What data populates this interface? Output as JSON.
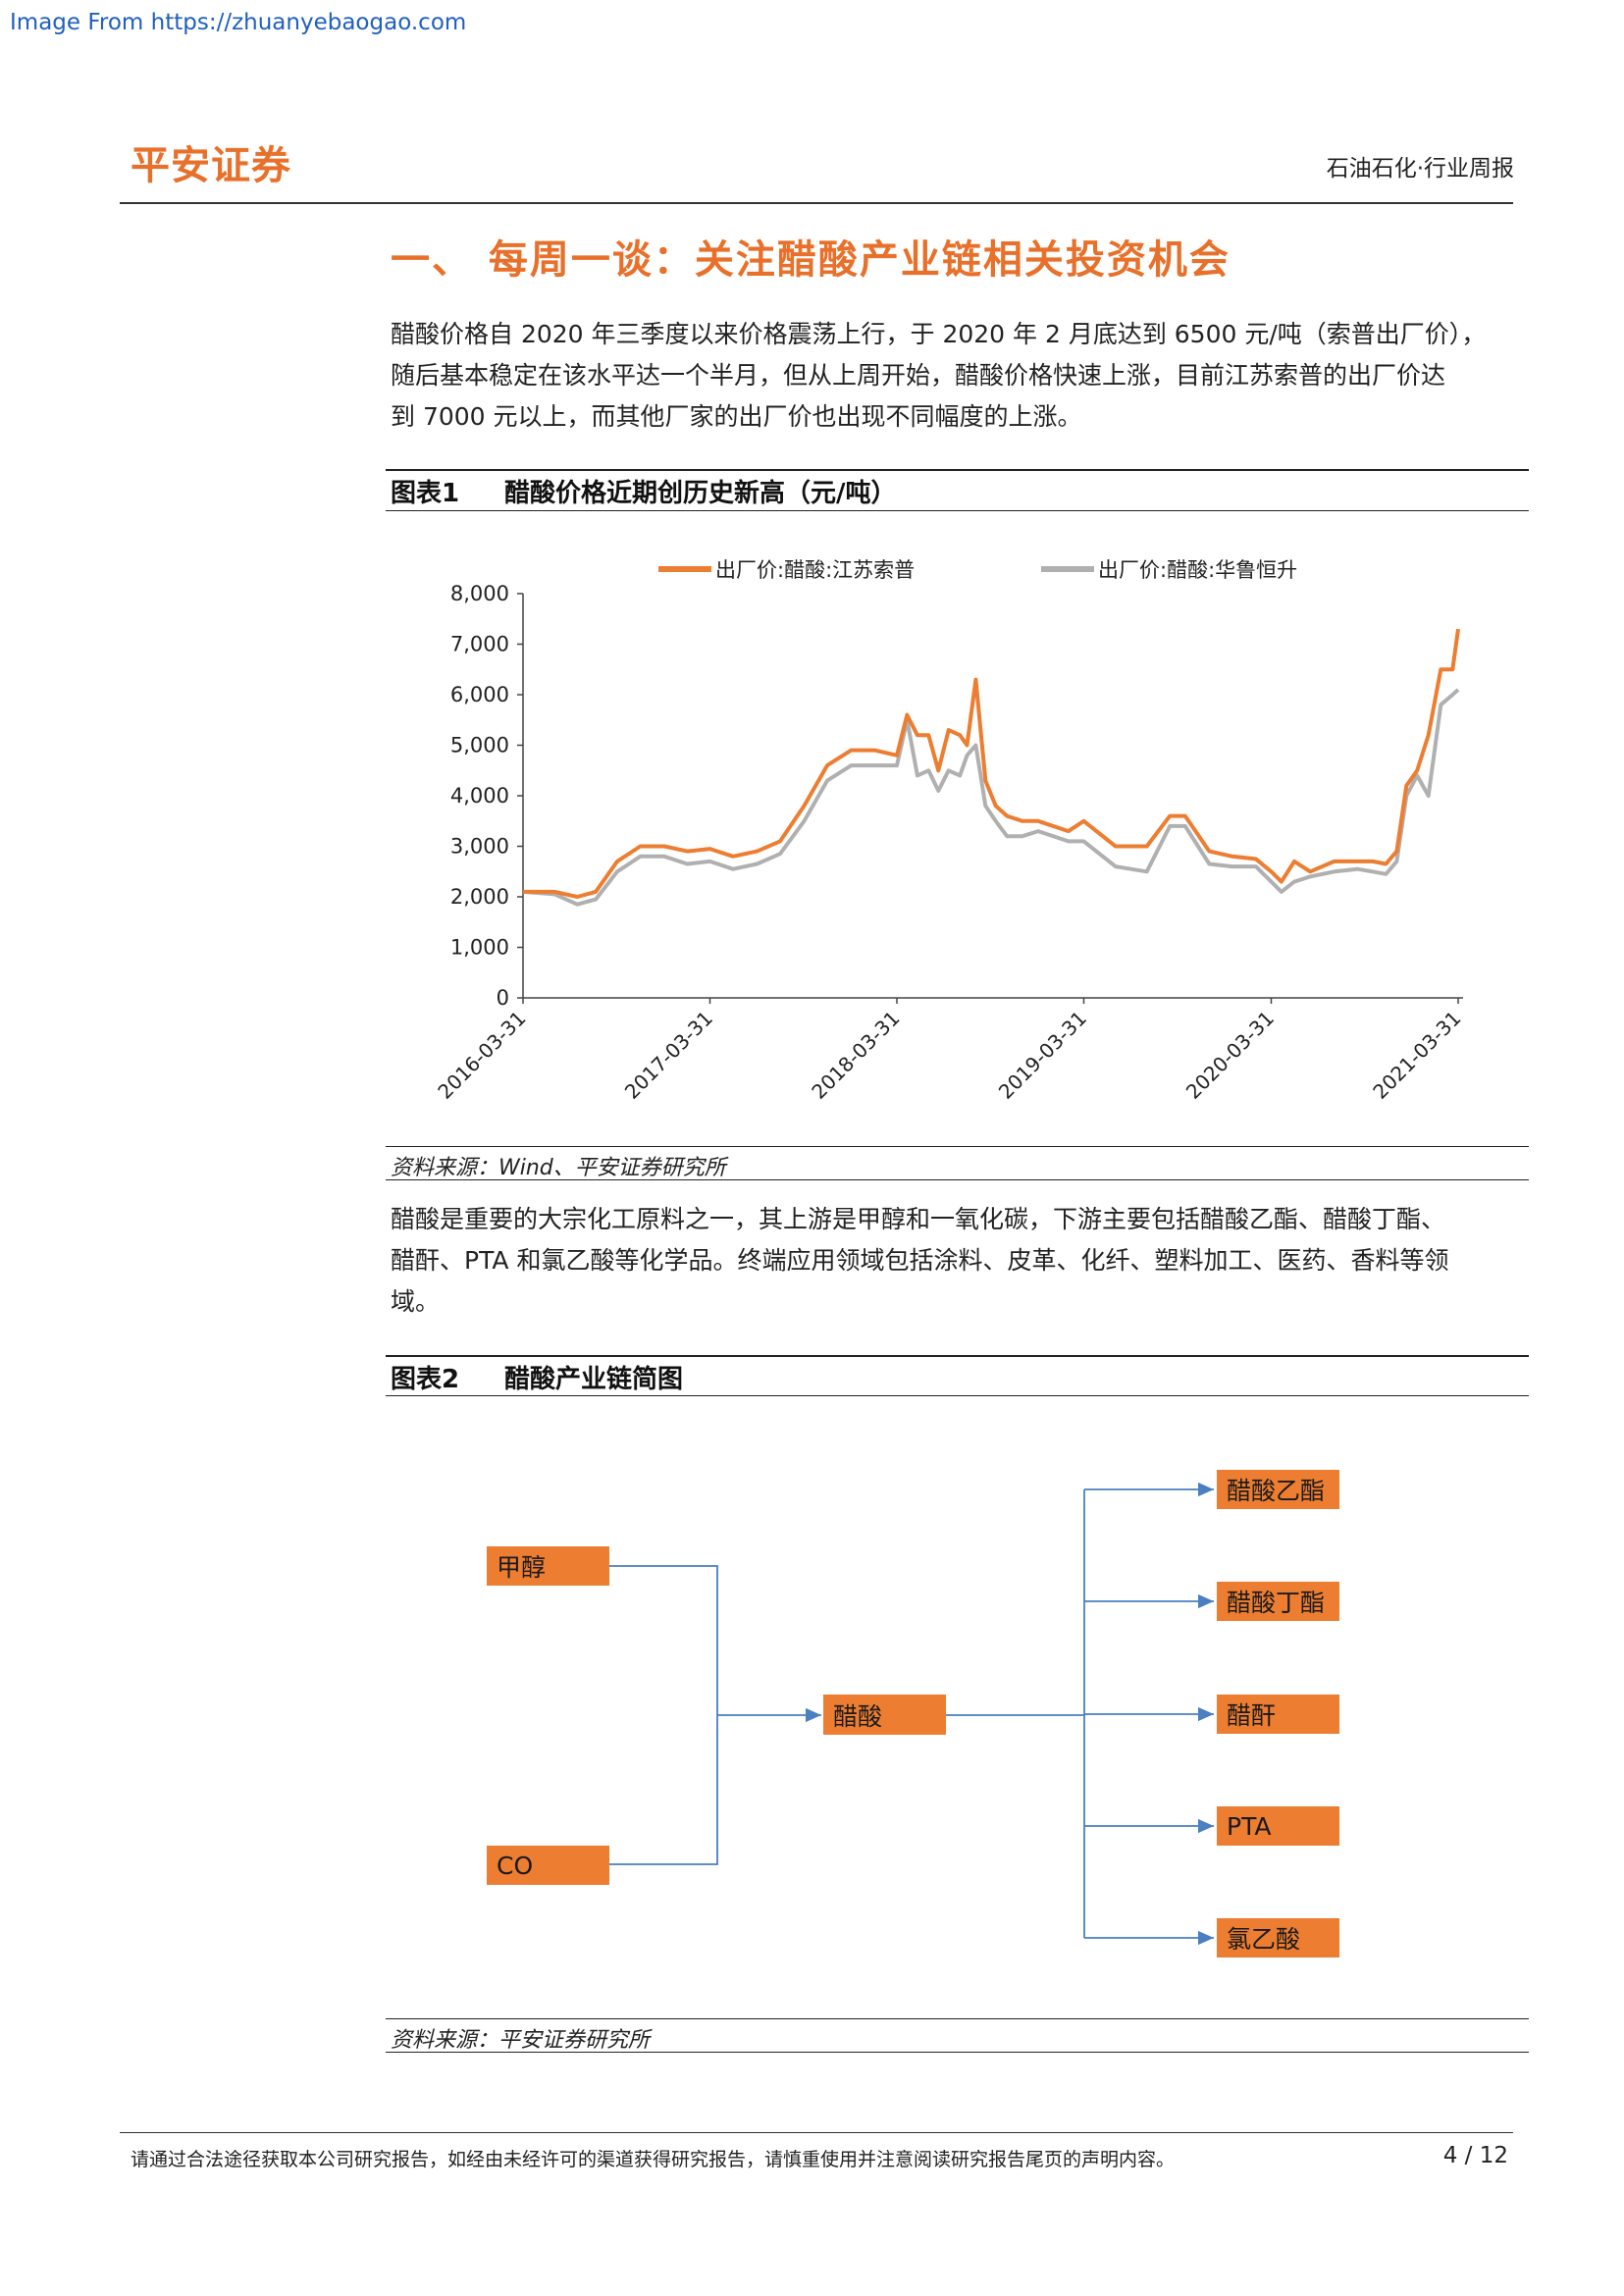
{
  "watermark": "Image From https://zhuanyebaogao.com",
  "header": {
    "logo": "平安证券",
    "category": "石油石化·行业周报"
  },
  "section": {
    "title": "一、  每周一谈：关注醋酸产业链相关投资机会"
  },
  "paragraphs": [
    [
      "醋酸价格自 2020 年三季度以来价格震荡上行，于 2020 年 2 月底达到 6500 元/吨（索普出厂价），",
      "随后基本稳定在该水平达一个半月，但从上周开始，醋酸价格快速上涨，目前江苏索普的出厂价达",
      "到 7000 元以上，而其他厂家的出厂价也出现不同幅度的上涨。"
    ],
    [
      "醋酸是重要的大宗化工原料之一，其上游是甲醇和一氧化碳，下游主要包括醋酸乙酯、醋酸丁酯、",
      "醋酐、PTA 和氯乙酸等化学品。终端应用领域包括涂料、皮革、化纤、塑料加工、医药、香料等领",
      "域。"
    ]
  ],
  "figure1": {
    "num": "图表1",
    "title": "醋酸价格近期创历史新高（元/吨）",
    "source": "资料来源：Wind、平安证券研究所"
  },
  "figure2": {
    "num": "图表2",
    "title": "醋酸产业链简图",
    "source": "资料来源：平安证券研究所"
  },
  "chart_data": {
    "type": "line",
    "title": "",
    "xlabel": "",
    "ylabel": "",
    "ylim": [
      0,
      8000
    ],
    "yticks": [
      "8,000",
      "7,000",
      "6,000",
      "5,000",
      "4,000",
      "3,000",
      "2,000",
      "1,000",
      "0"
    ],
    "xticks": [
      "2016-03-31",
      "2017-03-31",
      "2018-03-31",
      "2019-03-31",
      "2020-03-31",
      "2021-03-31"
    ],
    "legend_position": "top",
    "series": [
      {
        "name": "出厂价:醋酸:江苏索普",
        "color": "#ed7d31",
        "x": [
          "2016-03-31",
          "2016-06-01",
          "2016-07-15",
          "2016-08-20",
          "2016-10-01",
          "2016-11-15",
          "2017-01-01",
          "2017-02-15",
          "2017-03-31",
          "2017-05-15",
          "2017-07-01",
          "2017-08-15",
          "2017-10-01",
          "2017-11-15",
          "2018-01-01",
          "2018-02-15",
          "2018-03-31",
          "2018-04-20",
          "2018-05-10",
          "2018-06-01",
          "2018-06-20",
          "2018-07-10",
          "2018-08-01",
          "2018-08-15",
          "2018-09-01",
          "2018-09-20",
          "2018-10-10",
          "2018-11-01",
          "2018-12-01",
          "2019-01-01",
          "2019-03-01",
          "2019-03-31",
          "2019-06-01",
          "2019-08-01",
          "2019-09-15",
          "2019-10-15",
          "2019-12-01",
          "2020-01-15",
          "2020-03-01",
          "2020-03-31",
          "2020-04-20",
          "2020-05-15",
          "2020-06-15",
          "2020-08-01",
          "2020-09-15",
          "2020-10-15",
          "2020-11-10",
          "2020-12-01",
          "2020-12-20",
          "2021-01-10",
          "2021-02-01",
          "2021-02-25",
          "2021-03-20",
          "2021-03-31"
        ],
        "values": [
          2100,
          2100,
          2000,
          2100,
          2700,
          3000,
          3000,
          2900,
          2950,
          2800,
          2900,
          3100,
          3800,
          4600,
          4900,
          4900,
          4800,
          5600,
          5200,
          5200,
          4500,
          5300,
          5200,
          5000,
          6300,
          4300,
          3800,
          3600,
          3500,
          3500,
          3300,
          3500,
          3000,
          3000,
          3600,
          3600,
          2900,
          2800,
          2750,
          2500,
          2300,
          2700,
          2500,
          2700,
          2700,
          2700,
          2650,
          2900,
          4200,
          4500,
          5200,
          6500,
          6500,
          7300
        ]
      },
      {
        "name": "出厂价:醋酸:华鲁恒升",
        "color": "#b0b0b0",
        "x": [
          "2016-03-31",
          "2016-06-01",
          "2016-07-15",
          "2016-08-20",
          "2016-10-01",
          "2016-11-15",
          "2017-01-01",
          "2017-02-15",
          "2017-03-31",
          "2017-05-15",
          "2017-07-01",
          "2017-08-15",
          "2017-10-01",
          "2017-11-15",
          "2018-01-01",
          "2018-02-15",
          "2018-03-31",
          "2018-04-20",
          "2018-05-10",
          "2018-06-01",
          "2018-06-20",
          "2018-07-10",
          "2018-08-01",
          "2018-08-15",
          "2018-09-01",
          "2018-09-20",
          "2018-10-10",
          "2018-11-01",
          "2018-12-01",
          "2019-01-01",
          "2019-03-01",
          "2019-03-31",
          "2019-06-01",
          "2019-08-01",
          "2019-09-15",
          "2019-10-15",
          "2019-12-01",
          "2020-01-15",
          "2020-03-01",
          "2020-03-31",
          "2020-04-20",
          "2020-05-15",
          "2020-06-15",
          "2020-08-01",
          "2020-09-15",
          "2020-10-15",
          "2020-11-10",
          "2020-12-01",
          "2020-12-20",
          "2021-01-10",
          "2021-02-01",
          "2021-02-25",
          "2021-03-20",
          "2021-03-31"
        ],
        "values": [
          2100,
          2050,
          1850,
          1950,
          2500,
          2800,
          2800,
          2650,
          2700,
          2550,
          2650,
          2850,
          3500,
          4300,
          4600,
          4600,
          4600,
          5500,
          4400,
          4500,
          4100,
          4500,
          4400,
          4800,
          5000,
          3800,
          3500,
          3200,
          3200,
          3300,
          3100,
          3100,
          2600,
          2500,
          3400,
          3400,
          2650,
          2600,
          2600,
          2300,
          2100,
          2300,
          2400,
          2500,
          2550,
          2500,
          2450,
          2700,
          4000,
          4400,
          4000,
          5800,
          6000,
          6100
        ]
      }
    ]
  },
  "diagram": {
    "inputs": [
      "甲醇",
      "CO"
    ],
    "center": "醋酸",
    "outputs": [
      "醋酸乙酯",
      "醋酸丁酯",
      "醋酐",
      "PTA",
      "氯乙酸"
    ]
  },
  "footer": {
    "disclaimer": "请通过合法途径获取本公司研究报告，如经由未经许可的渠道获得研究报告，请慎重使用并注意阅读研究报告尾页的声明内容。",
    "page": "4 / 12"
  }
}
